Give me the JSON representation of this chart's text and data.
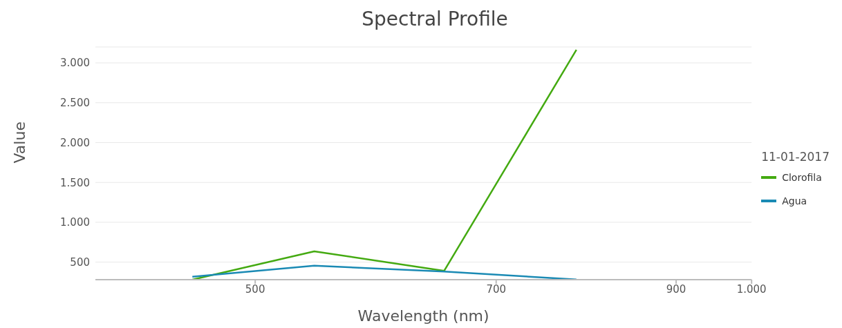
{
  "chart_data": {
    "type": "line",
    "title": "Spectral Profile",
    "xlabel": "Wavelength (nm)",
    "ylabel": "Value",
    "legend_title": "11-01-2017",
    "legend": "right",
    "grid": "y",
    "marker": "none",
    "log": "x",
    "xlim": [
      400,
      1000
    ],
    "xticks": [
      500,
      700,
      900,
      {
        "value": 1000,
        "label": "1.000"
      }
    ],
    "ylim": [
      280,
      3200
    ],
    "yticks": [
      500,
      {
        "value": 1000,
        "label": "1.000"
      },
      {
        "value": 1500,
        "label": "1.500"
      },
      {
        "value": 2000,
        "label": "2.000"
      },
      {
        "value": 2500,
        "label": "2.500"
      },
      {
        "value": 3000,
        "label": "3.000"
      }
    ],
    "x": [
      458,
      543,
      651,
      783
    ],
    "series": [
      {
        "name": "Clorofila",
        "color": "#44aa11",
        "values": [
          280,
          636,
          391,
          3164
        ]
      },
      {
        "name": "Agua",
        "color": "#1a8ab4",
        "values": [
          316,
          455,
          382,
          282
        ]
      }
    ]
  }
}
